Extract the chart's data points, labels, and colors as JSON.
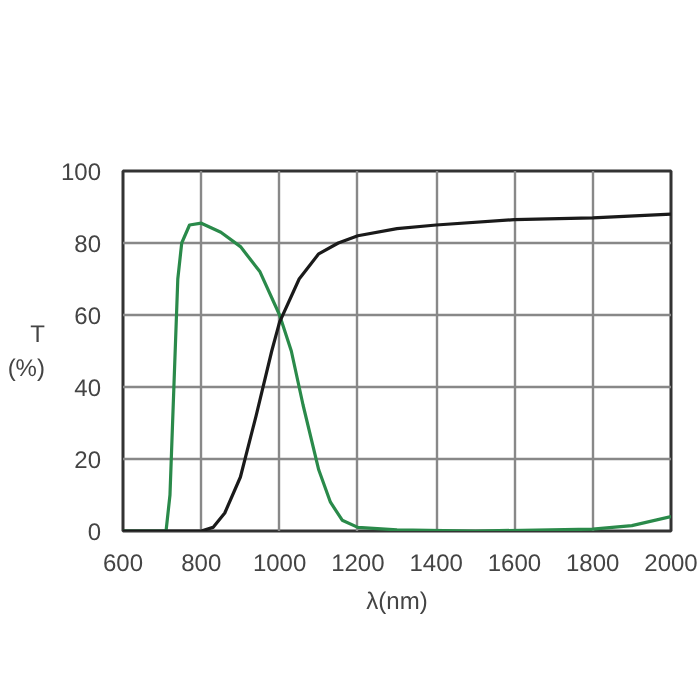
{
  "chart_data": {
    "type": "line",
    "xlabel": "λ(nm)",
    "ylabel": "T\n(%)",
    "xlim": [
      600,
      2000
    ],
    "ylim": [
      0,
      100
    ],
    "xticks": [
      600,
      800,
      1000,
      1200,
      1400,
      1600,
      1800,
      2000
    ],
    "yticks": [
      0,
      20,
      40,
      60,
      80,
      100
    ],
    "grid": true,
    "line_style": "solid",
    "series": [
      {
        "color": "#2a8a4a",
        "x": [
          600,
          700,
          710,
          720,
          730,
          740,
          750,
          770,
          800,
          850,
          900,
          950,
          1000,
          1030,
          1060,
          1100,
          1130,
          1160,
          1200,
          1300,
          1500,
          1800,
          1900,
          2000
        ],
        "values": [
          0,
          0,
          0,
          10,
          40,
          70,
          80,
          85,
          85.5,
          83,
          79,
          72,
          60,
          50,
          35,
          17,
          8,
          3,
          1,
          0.3,
          0,
          0.5,
          1.5,
          4
        ]
      },
      {
        "color": "#1a1a1a",
        "x": [
          600,
          800,
          830,
          860,
          900,
          940,
          980,
          1000,
          1050,
          1100,
          1150,
          1200,
          1300,
          1400,
          1600,
          1800,
          2000
        ],
        "values": [
          0,
          0,
          1,
          5,
          15,
          32,
          50,
          58,
          70,
          77,
          80,
          82,
          84,
          85,
          86.5,
          87,
          88
        ]
      }
    ]
  }
}
